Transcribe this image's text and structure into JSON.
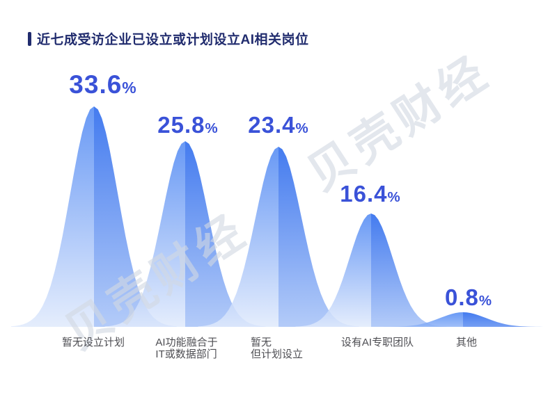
{
  "header": {
    "title": "近七成受访企业已设立或计划设立AI相关岗位"
  },
  "watermark": {
    "text": "贝壳财经"
  },
  "chart_data": {
    "type": "area",
    "title": "近七成受访企业已设立或计划设立AI相关岗位",
    "unit": "%",
    "categories": [
      "暂无设立计划",
      "AI功能融合于IT或数据部门",
      "暂无但计划设立",
      "设有AI专职团队",
      "其他"
    ],
    "values": [
      33.6,
      25.8,
      23.4,
      16.4,
      0.8
    ],
    "points": [
      {
        "value": "33.6",
        "category_lines": [
          "暂无设立计划",
          ""
        ]
      },
      {
        "value": "25.8",
        "category_lines": [
          "AI功能融合于",
          "IT或数据部门"
        ]
      },
      {
        "value": "23.4",
        "category_lines": [
          "暂无",
          "但计划设立"
        ]
      },
      {
        "value": "16.4",
        "category_lines": [
          "设有AI专职团队",
          ""
        ]
      },
      {
        "value": "0.8",
        "category_lines": [
          "其他",
          ""
        ]
      }
    ],
    "axis": {
      "ylim": [
        0,
        35
      ],
      "grid": false,
      "legend": false,
      "baseline_visible": false
    },
    "style": {
      "title_color": "#212c6e",
      "value_color": "#3a52d8",
      "label_color": "#4d4d52",
      "watermark_color": "rgba(210,216,226,0.62)",
      "peak_left_top": "#4e87f3",
      "peak_left_bottom": "#e0eafc",
      "peak_right_top": "#2364ec",
      "peak_right_bottom": "#a6c2f7"
    }
  }
}
